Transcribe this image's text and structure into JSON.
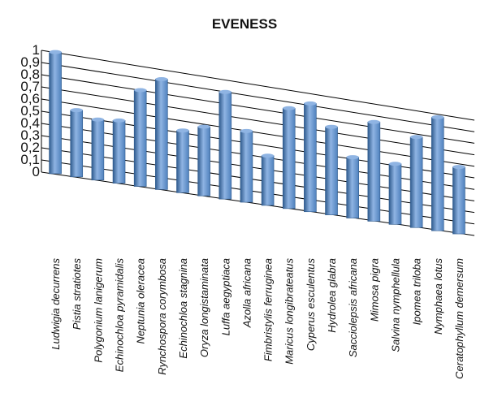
{
  "chart_data": {
    "type": "bar",
    "title": "EVENESS",
    "categories": [
      "Ludwigia decurrens",
      "Pistia stratiotes",
      "Polygonium lanigerum",
      "Echinochloa pyramidalis",
      "Neptunia oleracea",
      "Rynchospora corymbosa",
      "Echinochloa stagnina",
      "Oryza longistaminata",
      "Luffa aegyptiaca",
      "Azolla africana",
      "Fimbristylis ferruginea",
      "Maricus longibrateatus",
      "Cyperus esculentus",
      "Hydrolea glabra",
      "Sacciolepsis africana",
      "Mimosa pigra",
      "Salvina nymphellula",
      "Ipomea triloba",
      "Nymphaea lotus",
      "Ceratophyllum demersum"
    ],
    "values": [
      1.0,
      0.55,
      0.5,
      0.52,
      0.8,
      0.92,
      0.52,
      0.58,
      0.9,
      0.6,
      0.42,
      0.85,
      0.92,
      0.75,
      0.52,
      0.85,
      0.52,
      0.78,
      0.98,
      0.58
    ],
    "yticks": [
      "0",
      "0,1",
      "0,2",
      "0,3",
      "0,4",
      "0,5",
      "0,6",
      "0,7",
      "0,8",
      "0,9",
      "1"
    ],
    "ylim": [
      0,
      1
    ],
    "grid": true,
    "legend": "none",
    "xlabel": "",
    "ylabel": "",
    "colors": {
      "bar": "#4f81bd",
      "bar_light": "#8fb4e3",
      "bar_dark": "#2f5b8e",
      "grid": "#000000"
    }
  }
}
